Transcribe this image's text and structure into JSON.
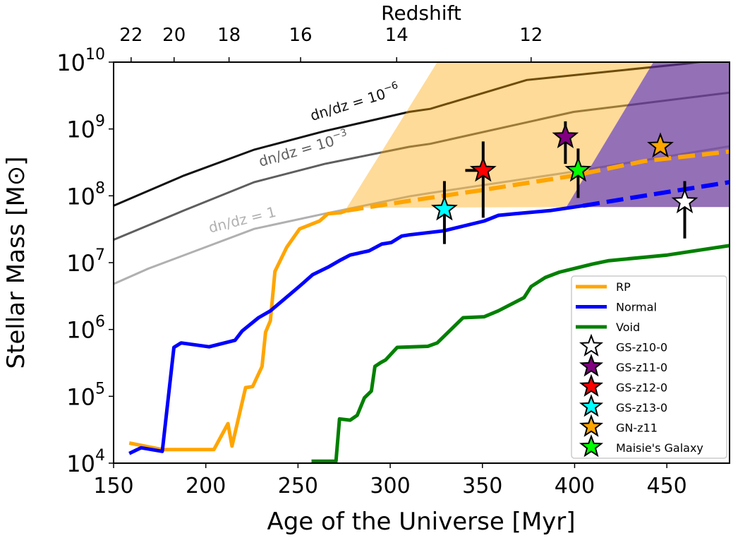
{
  "chart_data": {
    "type": "line",
    "xlabel": "Age of the Universe [Myr]",
    "ylabel": "Stellar Mass [M⊙]",
    "top_xlabel": "Redshift",
    "xlim": [
      150,
      484
    ],
    "ylim": [
      10000.0,
      10000000000.0
    ],
    "yscale": "log",
    "grid": false,
    "legend_position": "bottom-right",
    "xticks": [
      150,
      200,
      250,
      300,
      350,
      400,
      450
    ],
    "yticks": [
      {
        "base": "10",
        "exp": "4",
        "value": 10000.0
      },
      {
        "base": "10",
        "exp": "5",
        "value": 100000.0
      },
      {
        "base": "10",
        "exp": "6",
        "value": 1000000.0
      },
      {
        "base": "10",
        "exp": "7",
        "value": 10000000.0
      },
      {
        "base": "10",
        "exp": "8",
        "value": 100000000.0
      },
      {
        "base": "10",
        "exp": "9",
        "value": 1000000000.0
      },
      {
        "base": "10",
        "exp": "10",
        "value": 10000000000.0
      }
    ],
    "top_xticks": [
      {
        "label": "22",
        "age": 159.5
      },
      {
        "label": "20",
        "age": 182.8
      },
      {
        "label": "18",
        "age": 212.6
      },
      {
        "label": "16",
        "age": 251.4
      },
      {
        "label": "14",
        "age": 303.5
      },
      {
        "label": "12",
        "age": 376.4
      }
    ],
    "regions": [
      {
        "name": "RP",
        "color": "#FFA500",
        "opacity": 0.4,
        "points": [
          [
            276.4,
            66000000.0
          ],
          [
            325.5,
            10000000000.0
          ],
          [
            442.7,
            10000000000.0
          ],
          [
            395.5,
            68000000.0
          ]
        ]
      },
      {
        "name": "Normal",
        "color": "#663399",
        "opacity": 0.7,
        "points": [
          [
            395.5,
            68000000.0
          ],
          [
            442.7,
            10000000000.0
          ],
          [
            484,
            10000000000.0
          ],
          [
            484,
            68000000.0
          ]
        ]
      }
    ],
    "reference_curves": [
      {
        "label": "dn/dz = 10",
        "exp": "−6",
        "color": "#111111",
        "x": [
          150,
          188,
          226.2,
          264.4,
          310.2,
          321.7,
          374,
          460.6,
          484
        ],
        "y": [
          71000000.0,
          200000000.0,
          490000000.0,
          930000000.0,
          1800000000.0,
          2000000000.0,
          5400000000.0,
          9500000000.0,
          11500000000.0
        ]
      },
      {
        "label": "dn/dz = 10",
        "exp": "−3",
        "color": "#5e5e5e",
        "x": [
          150,
          188,
          226.2,
          264.4,
          310.2,
          321.7,
          399.4,
          484
        ],
        "y": [
          22000000.0,
          60000000.0,
          160000000.0,
          300000000.0,
          540000000.0,
          600000000.0,
          1800000000.0,
          3500000000.0
        ]
      },
      {
        "label": "dn/dz = 1",
        "exp": "",
        "color": "#b0b0b0",
        "x": [
          150,
          168.6,
          226.2,
          264.4,
          310.2,
          321.7,
          399.4,
          484
        ],
        "y": [
          4800000.0,
          8100000.0,
          32000000.0,
          54000000.0,
          98000000.0,
          110000000.0,
          230000000.0,
          550000000.0
        ]
      }
    ],
    "series": [
      {
        "name": "RP",
        "color": "#FFA500",
        "x": [
          158.5,
          176.4,
          204.4,
          212,
          214.2,
          221.6,
          225.4,
          230.5,
          232.4,
          235,
          237.5,
          243.9,
          250.9,
          261.7,
          266.2,
          273.2,
          276.4
        ],
        "y": [
          20000.0,
          16000.0,
          16000.0,
          39000.0,
          18000.0,
          135000.0,
          140000.0,
          280000.0,
          910000.0,
          1350000.0,
          7400000.0,
          17000000.0,
          32000000.0,
          42000000.0,
          54000000.0,
          56000000.0,
          60000000.0
        ],
        "dashed_x": [
          276.4,
          310.2,
          348.4,
          399.4,
          437.6,
          484
        ],
        "dashed_y": [
          60000000.0,
          84000000.0,
          120000000.0,
          200000000.0,
          330000000.0,
          460000000.0
        ]
      },
      {
        "name": "Normal",
        "color": "#0000FF",
        "x": [
          158.5,
          164.9,
          176.4,
          182.7,
          186.6,
          201.8,
          215.9,
          219.7,
          228.6,
          235,
          246.4,
          251.5,
          257.9,
          266.8,
          273.2,
          278.3,
          288.5,
          295.5,
          300.6,
          306.3,
          310.2,
          329.3,
          351,
          358.7,
          367.6,
          386.7,
          404.5
        ],
        "y": [
          14000.0,
          17000.0,
          15000.0,
          540000.0,
          630000.0,
          550000.0,
          690000.0,
          950000.0,
          1500000.0,
          1900000.0,
          3500000.0,
          4600000.0,
          6600000.0,
          8700000.0,
          11000000.0,
          13000000.0,
          15000000.0,
          19000000.0,
          20000000.0,
          25000000.0,
          26000000.0,
          30000000.0,
          42000000.0,
          51000000.0,
          54000000.0,
          60000000.0,
          71000000.0
        ],
        "dashed_x": [
          404.5,
          437.6,
          484
        ],
        "dashed_y": [
          71000000.0,
          100000000.0,
          160000000.0
        ]
      },
      {
        "name": "Void",
        "color": "#008000",
        "x": [
          257.3,
          270.6,
          272.5,
          278.3,
          282.1,
          286,
          289.8,
          291.7,
          294.9,
          297.5,
          303.8,
          320.4,
          325.5,
          339.5,
          351,
          358.6,
          372.6,
          376.4,
          384.1,
          391.7,
          409.6,
          418.5,
          450.3,
          484
        ],
        "y": [
          10700.0,
          10700.0,
          46000.0,
          44000.0,
          52000.0,
          95000.0,
          120000.0,
          280000.0,
          320000.0,
          350000.0,
          540000.0,
          560000.0,
          630000.0,
          1500000.0,
          1550000.0,
          1900000.0,
          3000000.0,
          4400000.0,
          6000000.0,
          7200000.0,
          9500000.0,
          10700000.0,
          13000000.0,
          18000000.0
        ]
      }
    ],
    "galaxies": [
      {
        "name": "GS-z10-0",
        "color": "#FFFFFF",
        "x": 459.7,
        "y": 81000000.0,
        "yerr": [
          23000000.0,
          166000000.0
        ]
      },
      {
        "name": "GS-z11-0",
        "color": "#800080",
        "x": 395,
        "y": 760000000.0,
        "yerr": [
          300000000.0,
          1300000000.0
        ]
      },
      {
        "name": "GS-z12-0",
        "color": "#FF0000",
        "x": 350.4,
        "y": 240000000.0,
        "yerr": [
          47000000.0,
          650000000.0
        ],
        "xerr": [
          340.7,
          350.4
        ]
      },
      {
        "name": "GS-z13-0",
        "color": "#00FFFF",
        "x": 329.4,
        "y": 63000000.0,
        "yerr": [
          19000000.0,
          166000000.0
        ]
      },
      {
        "name": "GN-z11",
        "color": "#FFA500",
        "x": 446.5,
        "y": 550000000.0
      },
      {
        "name": "Maisie's Galaxy",
        "color": "#00FF00",
        "x": 401.9,
        "y": 240000000.0,
        "yerr": [
          93000000.0,
          510000000.0
        ]
      }
    ]
  }
}
